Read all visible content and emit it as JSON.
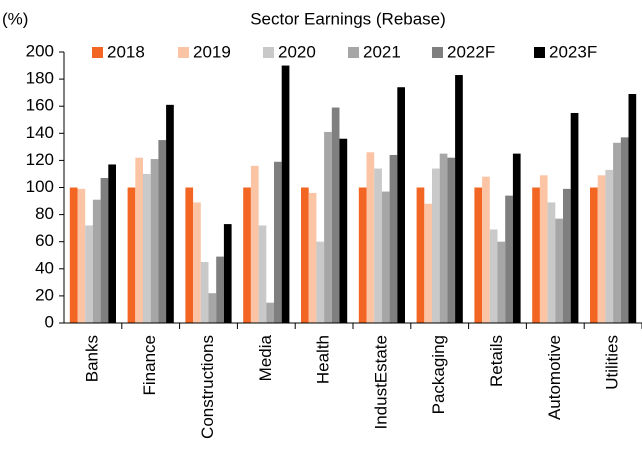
{
  "chart_data": {
    "type": "bar",
    "title": "Sector Earnings (Rebase)",
    "y_label": "(%)",
    "categories": [
      "Banks",
      "Finance",
      "Constructions",
      "Media",
      "Health",
      "IndustEstate",
      "Packaging",
      "Retails",
      "Automotive",
      "Utilities"
    ],
    "series": [
      {
        "name": "2018",
        "color": "#f26522",
        "values": [
          100,
          100,
          100,
          100,
          100,
          100,
          100,
          100,
          100,
          100
        ]
      },
      {
        "name": "2019",
        "color": "#fbc4a4",
        "values": [
          99,
          122,
          89,
          116,
          96,
          126,
          88,
          108,
          109,
          109
        ]
      },
      {
        "name": "2020",
        "color": "#c9c9c9",
        "values": [
          72,
          110,
          45,
          72,
          60,
          114,
          114,
          69,
          89,
          113
        ]
      },
      {
        "name": "2021",
        "color": "#a6a6a6",
        "values": [
          91,
          121,
          22,
          15,
          141,
          97,
          125,
          60,
          77,
          133
        ]
      },
      {
        "name": "2022F",
        "color": "#7f7f7f",
        "values": [
          107,
          135,
          49,
          119,
          159,
          124,
          122,
          94,
          99,
          137
        ]
      },
      {
        "name": "2023F",
        "color": "#000000",
        "values": [
          117,
          161,
          73,
          190,
          136,
          174,
          183,
          125,
          155,
          169
        ]
      }
    ],
    "ylim": [
      0,
      200
    ],
    "yticks": [
      0,
      20,
      40,
      60,
      80,
      100,
      120,
      140,
      160,
      180,
      200
    ],
    "legend": "top"
  }
}
